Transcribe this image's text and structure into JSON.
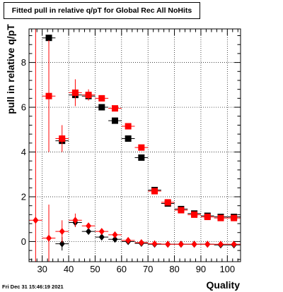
{
  "chart_data": {
    "type": "scatter",
    "title": "Fitted pull in relative q/pT for Global Rec All NoHits",
    "xlabel": "Quality",
    "ylabel": "pull in relative q/pT",
    "xlim": [
      25,
      105
    ],
    "ylim": [
      -0.9,
      9.5
    ],
    "x_ticks": [
      30,
      40,
      50,
      60,
      70,
      80,
      90,
      100
    ],
    "y_ticks": [
      0,
      2,
      4,
      6,
      8
    ],
    "grid": true,
    "series": [
      {
        "marker": "square",
        "color": "#000000",
        "points": [
          {
            "x": 32.5,
            "y": 9.1,
            "ex": 2.5,
            "ey": 0.1
          },
          {
            "x": 37.5,
            "y": 4.5,
            "ex": 2.5,
            "ey": 0.1
          },
          {
            "x": 42.5,
            "y": 6.55,
            "ex": 2.5,
            "ey": 0.1
          },
          {
            "x": 47.5,
            "y": 6.5,
            "ex": 2.5,
            "ey": 0.1
          },
          {
            "x": 52.5,
            "y": 6.0,
            "ex": 2.5,
            "ey": 0.05
          },
          {
            "x": 57.5,
            "y": 5.4,
            "ex": 2.5,
            "ey": 0.05
          },
          {
            "x": 62.5,
            "y": 4.6,
            "ex": 2.5,
            "ey": 0.05
          },
          {
            "x": 67.5,
            "y": 3.75,
            "ex": 2.5,
            "ey": 0.05
          },
          {
            "x": 72.5,
            "y": 2.3,
            "ex": 2.5,
            "ey": 0.03
          },
          {
            "x": 77.5,
            "y": 1.7,
            "ex": 2.5,
            "ey": 0.03
          },
          {
            "x": 82.5,
            "y": 1.45,
            "ex": 2.5,
            "ey": 0.03
          },
          {
            "x": 87.5,
            "y": 1.25,
            "ex": 2.5,
            "ey": 0.03
          },
          {
            "x": 92.5,
            "y": 1.15,
            "ex": 2.5,
            "ey": 0.03
          },
          {
            "x": 97.5,
            "y": 1.1,
            "ex": 2.5,
            "ey": 0.03
          },
          {
            "x": 102.5,
            "y": 1.1,
            "ex": 2.5,
            "ey": 0.03
          }
        ]
      },
      {
        "marker": "square",
        "color": "#ff0000",
        "points": [
          {
            "x": 32.5,
            "y": 6.5,
            "ex": 2.5,
            "ey": 2.5
          },
          {
            "x": 37.5,
            "y": 4.6,
            "ex": 2.5,
            "ey": 0.6
          },
          {
            "x": 42.5,
            "y": 6.65,
            "ex": 2.5,
            "ey": 0.6
          },
          {
            "x": 47.5,
            "y": 6.55,
            "ex": 2.5,
            "ey": 0.25
          },
          {
            "x": 52.5,
            "y": 6.4,
            "ex": 2.5,
            "ey": 0.1
          },
          {
            "x": 57.5,
            "y": 5.95,
            "ex": 2.5,
            "ey": 0.08
          },
          {
            "x": 62.5,
            "y": 5.15,
            "ex": 2.5,
            "ey": 0.05
          },
          {
            "x": 67.5,
            "y": 4.2,
            "ex": 2.5,
            "ey": 0.05
          },
          {
            "x": 72.5,
            "y": 2.25,
            "ex": 2.5,
            "ey": 0.05
          },
          {
            "x": 77.5,
            "y": 1.75,
            "ex": 2.5,
            "ey": 0.04
          },
          {
            "x": 82.5,
            "y": 1.4,
            "ex": 2.5,
            "ey": 0.03
          },
          {
            "x": 87.5,
            "y": 1.2,
            "ex": 2.5,
            "ey": 0.03
          },
          {
            "x": 92.5,
            "y": 1.1,
            "ex": 2.5,
            "ey": 0.03
          },
          {
            "x": 97.5,
            "y": 1.05,
            "ex": 2.5,
            "ey": 0.03
          },
          {
            "x": 102.5,
            "y": 1.05,
            "ex": 2.5,
            "ey": 0.03
          }
        ]
      },
      {
        "marker": "diamond",
        "color": "#000000",
        "points": [
          {
            "x": 37.5,
            "y": -0.1,
            "ex": 2.5,
            "ey": 0.3
          },
          {
            "x": 42.5,
            "y": 0.85,
            "ex": 2.5,
            "ey": 0.2
          },
          {
            "x": 47.5,
            "y": 0.45,
            "ex": 2.5,
            "ey": 0.1
          },
          {
            "x": 52.5,
            "y": 0.2,
            "ex": 2.5,
            "ey": 0.05
          },
          {
            "x": 57.5,
            "y": 0.1,
            "ex": 2.5,
            "ey": 0.05
          },
          {
            "x": 62.5,
            "y": 0.0,
            "ex": 2.5,
            "ey": 0.03
          },
          {
            "x": 67.5,
            "y": -0.08,
            "ex": 2.5,
            "ey": 0.03
          },
          {
            "x": 72.5,
            "y": -0.12,
            "ex": 2.5,
            "ey": 0.02
          },
          {
            "x": 77.5,
            "y": -0.12,
            "ex": 2.5,
            "ey": 0.02
          },
          {
            "x": 82.5,
            "y": -0.12,
            "ex": 2.5,
            "ey": 0.02
          },
          {
            "x": 87.5,
            "y": -0.12,
            "ex": 2.5,
            "ey": 0.02
          },
          {
            "x": 92.5,
            "y": -0.12,
            "ex": 2.5,
            "ey": 0.02
          },
          {
            "x": 97.5,
            "y": -0.15,
            "ex": 2.5,
            "ey": 0.02
          },
          {
            "x": 102.5,
            "y": -0.15,
            "ex": 2.5,
            "ey": 0.02
          }
        ]
      },
      {
        "marker": "diamond",
        "color": "#ff0000",
        "points": [
          {
            "x": 27.5,
            "y": 0.95,
            "ex": 2.5,
            "ey": 9.0
          },
          {
            "x": 32.5,
            "y": 0.15,
            "ex": 2.5,
            "ey": 1.5
          },
          {
            "x": 37.5,
            "y": 0.45,
            "ex": 2.5,
            "ey": 0.5
          },
          {
            "x": 42.5,
            "y": 0.95,
            "ex": 2.5,
            "ey": 0.3
          },
          {
            "x": 47.5,
            "y": 0.7,
            "ex": 2.5,
            "ey": 0.1
          },
          {
            "x": 52.5,
            "y": 0.45,
            "ex": 2.5,
            "ey": 0.05
          },
          {
            "x": 57.5,
            "y": 0.3,
            "ex": 2.5,
            "ey": 0.05
          },
          {
            "x": 62.5,
            "y": 0.05,
            "ex": 2.5,
            "ey": 0.03
          },
          {
            "x": 67.5,
            "y": -0.05,
            "ex": 2.5,
            "ey": 0.03
          },
          {
            "x": 72.5,
            "y": -0.1,
            "ex": 2.5,
            "ey": 0.02
          },
          {
            "x": 77.5,
            "y": -0.12,
            "ex": 2.5,
            "ey": 0.02
          },
          {
            "x": 82.5,
            "y": -0.12,
            "ex": 2.5,
            "ey": 0.02
          },
          {
            "x": 87.5,
            "y": -0.12,
            "ex": 2.5,
            "ey": 0.02
          },
          {
            "x": 92.5,
            "y": -0.12,
            "ex": 2.5,
            "ey": 0.02
          },
          {
            "x": 97.5,
            "y": -0.12,
            "ex": 2.5,
            "ey": 0.02
          },
          {
            "x": 102.5,
            "y": -0.12,
            "ex": 2.5,
            "ey": 0.02
          }
        ]
      }
    ]
  },
  "footer": {
    "timestamp": "Fri Dec 31 15:46:19 2021"
  }
}
